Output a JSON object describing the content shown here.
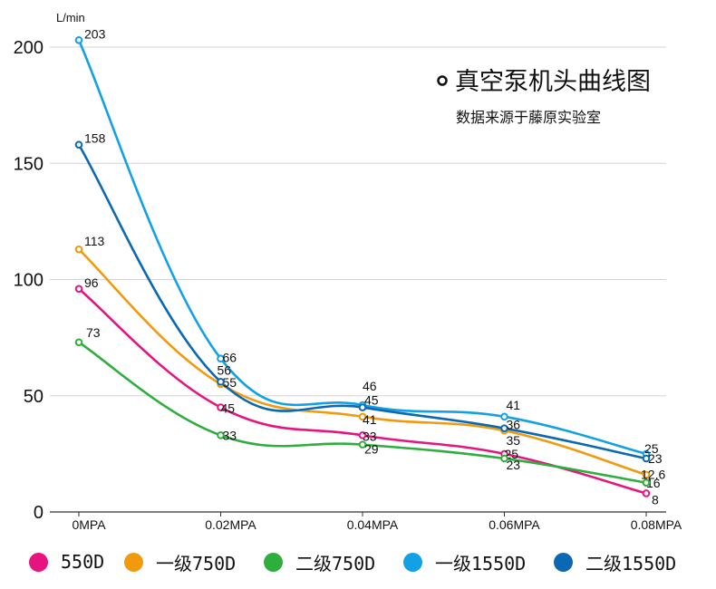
{
  "chart_data": {
    "type": "line",
    "title": "真空泵机头曲线图",
    "subtitle": "数据来源于藤原实验室",
    "ylabel": "L/min",
    "xlabel": "",
    "categories": [
      "0MPA",
      "0.02MPA",
      "0.04MPA",
      "0.06MPA",
      "0.08MPA"
    ],
    "ylim": [
      0,
      210
    ],
    "yticks": [
      0,
      50,
      100,
      150,
      200
    ],
    "grid": true,
    "legend_position": "bottom",
    "series": [
      {
        "name": "550D",
        "color": "#e6147e",
        "values": [
          96,
          45,
          33,
          25,
          8
        ],
        "labels": [
          "96",
          "45",
          "33",
          "25",
          "8"
        ]
      },
      {
        "name": "一级750D",
        "color": "#f29a0e",
        "values": [
          113,
          55,
          41,
          35,
          16
        ],
        "labels": [
          "113",
          "55",
          "41",
          "35",
          "16"
        ]
      },
      {
        "name": "二级750D",
        "color": "#2eae3c",
        "values": [
          73,
          33,
          29,
          23,
          12.6
        ],
        "labels": [
          "73",
          "33",
          "29",
          "23",
          "12.6"
        ]
      },
      {
        "name": "一级1550D",
        "color": "#13a1e6",
        "values": [
          203,
          66,
          46,
          41,
          25
        ],
        "labels": [
          "203",
          "66",
          "46",
          "41",
          "25"
        ]
      },
      {
        "name": "二级1550D",
        "color": "#0b68b3",
        "values": [
          158,
          56,
          45,
          36,
          23
        ],
        "labels": [
          "158",
          "56",
          "45",
          "36",
          "23"
        ]
      }
    ]
  }
}
